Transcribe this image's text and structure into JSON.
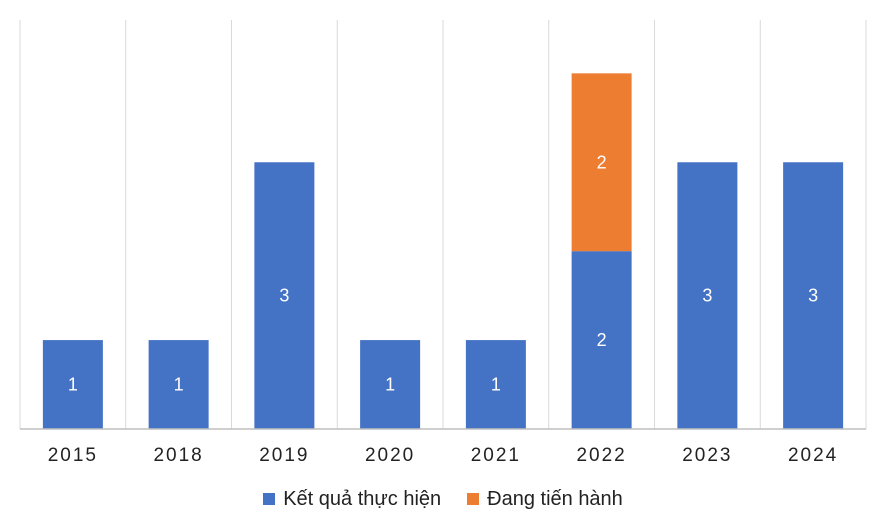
{
  "chart_data": {
    "type": "bar",
    "stacked": true,
    "categories": [
      "2015",
      "2018",
      "2019",
      "2020",
      "2021",
      "2022",
      "2023",
      "2024"
    ],
    "series": [
      {
        "name": "Kết quả thực hiện",
        "color": "#4472C4",
        "values": [
          1,
          1,
          3,
          1,
          1,
          2,
          3,
          3
        ]
      },
      {
        "name": "Đang tiến hành",
        "color": "#ED7D31",
        "values": [
          0,
          0,
          0,
          0,
          0,
          2,
          0,
          0
        ]
      }
    ],
    "ylim": [
      0,
      4.6
    ],
    "gridlines": "vertical separators",
    "data_labels": true,
    "legend_position": "bottom",
    "title": "",
    "xlabel": "",
    "ylabel": ""
  }
}
